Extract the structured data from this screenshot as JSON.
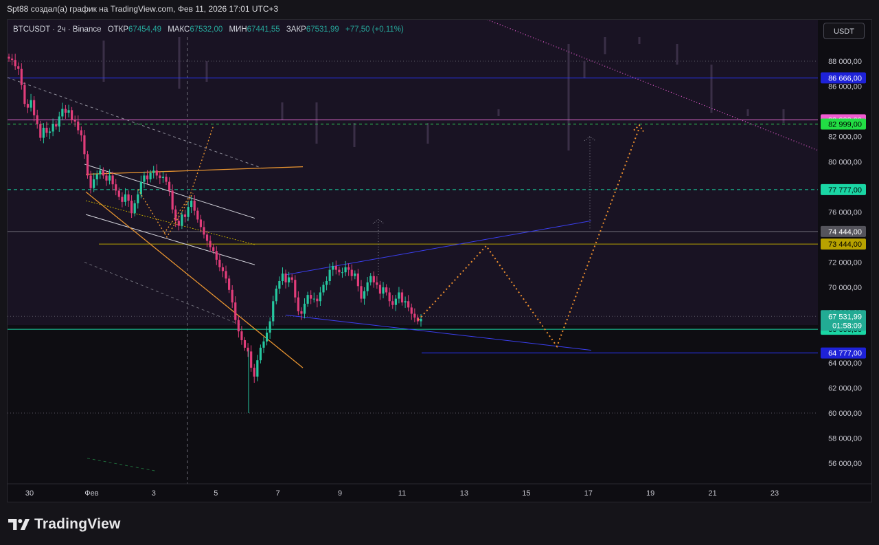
{
  "caption": "Spt88 создал(а) график на TradingView.com, Фев 11, 2026 17:01 UTC+3",
  "header": {
    "symbol": "BTCUSDT · 2ч · Binance",
    "open_label": "ОТКР",
    "open_value": "67454,49",
    "high_label": "МАКС",
    "high_value": "67532,00",
    "low_label": "МИН",
    "low_value": "67441,55",
    "close_label": "ЗАКР",
    "close_value": "67531,99",
    "change": "+77,50 (+0,11%)",
    "currency": "USDT"
  },
  "brand": {
    "name": "TradingView",
    "logo_icon": "tradingview-logo-icon"
  },
  "chart_data": {
    "type": "candlestick",
    "y_axis": {
      "range": [
        54000,
        90000
      ],
      "ticks": [
        {
          "value": 88000,
          "label": "88 000,00"
        },
        {
          "value": 86000,
          "label": "86 000,00"
        },
        {
          "value": 82000,
          "label": "82 000,00"
        },
        {
          "value": 80000,
          "label": "80 000,00"
        },
        {
          "value": 78000,
          "label": "78 000,00"
        },
        {
          "value": 76000,
          "label": "76 000,00"
        },
        {
          "value": 72000,
          "label": "72 000,00"
        },
        {
          "value": 70000,
          "label": "70 000,00"
        },
        {
          "value": 68000,
          "label": "68 000,00"
        },
        {
          "value": 64000,
          "label": "64 000,00"
        },
        {
          "value": 62000,
          "label": "62 000,00"
        },
        {
          "value": 60000,
          "label": "60 000,00"
        },
        {
          "value": 58000,
          "label": "58 000,00"
        },
        {
          "value": 56000,
          "label": "56 000,00"
        }
      ]
    },
    "x_axis": {
      "range": [
        29.6,
        24.7
      ],
      "ticks": [
        {
          "day": 30,
          "label": "30"
        },
        {
          "day": 32,
          "label": "Фев"
        },
        {
          "day": 34,
          "label": "3"
        },
        {
          "day": 36,
          "label": "5"
        },
        {
          "day": 38,
          "label": "7"
        },
        {
          "day": 40,
          "label": "9"
        },
        {
          "day": 42,
          "label": "11"
        },
        {
          "day": 44,
          "label": "13"
        },
        {
          "day": 46,
          "label": "15"
        },
        {
          "day": 48,
          "label": "17"
        },
        {
          "day": 50,
          "label": "19"
        },
        {
          "day": 52,
          "label": "21"
        },
        {
          "day": 54,
          "label": "23"
        }
      ],
      "x_min": 29.6,
      "x_max": 55.7
    },
    "price_labels": [
      {
        "value": 86666,
        "label": "86 666,00",
        "bg": "#1e22d8",
        "fg": "#ffffff"
      },
      {
        "value": 83333,
        "label": "83 333,00",
        "bg": "#f15bd1",
        "fg": "#ffffff"
      },
      {
        "value": 82999,
        "label": "82 999,00",
        "bg": "#22dd44",
        "fg": "#000000"
      },
      {
        "value": 77777,
        "label": "77 777,00",
        "bg": "#1ad6a4",
        "fg": "#000000"
      },
      {
        "value": 74444,
        "label": "74 444,00",
        "bg": "#55545c",
        "fg": "#ffffff"
      },
      {
        "value": 73444,
        "label": "73 444,00",
        "bg": "#b8a200",
        "fg": "#000000"
      },
      {
        "value": 66666,
        "label": "66 666,00",
        "bg": "#1ad6a4",
        "fg": "#000000"
      },
      {
        "value": 64777,
        "label": "64 777,00",
        "bg": "#1e22d8",
        "fg": "#ffffff"
      }
    ],
    "last_price": {
      "value": 67531.99,
      "label": "67 531,99",
      "countdown": "01:58:09",
      "bg": "#22ab94"
    },
    "candles_close": [
      88200,
      88100,
      87600,
      87400,
      86100,
      84600,
      84300,
      84900,
      83700,
      83000,
      81900,
      82700,
      82300,
      82400,
      83000,
      82800,
      83600,
      84200,
      83900,
      84100,
      83300,
      83200,
      82500,
      82100,
      80600,
      78900,
      77900,
      78600,
      79000,
      79300,
      78900,
      78500,
      78900,
      78200,
      77700,
      77200,
      76800,
      77400,
      76900,
      75900,
      76700,
      77400,
      78400,
      78900,
      78600,
      79100,
      79300,
      78900,
      78700,
      78800,
      78400,
      77700,
      76200,
      75300,
      74900,
      75800,
      75600,
      76400,
      76900,
      76100,
      75400,
      74800,
      74200,
      73700,
      73200,
      72900,
      72200,
      71600,
      71300,
      70700,
      69800,
      68800,
      67400,
      66500,
      65800,
      65200,
      64900,
      63600,
      62900,
      64200,
      65200,
      65700,
      66400,
      67300,
      68900,
      69900,
      70500,
      71100,
      70400,
      70800,
      70600,
      69200,
      68100,
      67900,
      68700,
      69400,
      69100,
      69100,
      68900,
      69600,
      70200,
      70500,
      71400,
      71700,
      71400,
      71200,
      71200,
      71600,
      71400,
      70900,
      71100,
      70100,
      69100,
      69700,
      70400,
      70900,
      70400,
      70200,
      69500,
      70000,
      69600,
      68900,
      68600,
      69100,
      69600,
      68800,
      68900,
      68400,
      67900,
      67600,
      67300,
      67500
    ]
  }
}
